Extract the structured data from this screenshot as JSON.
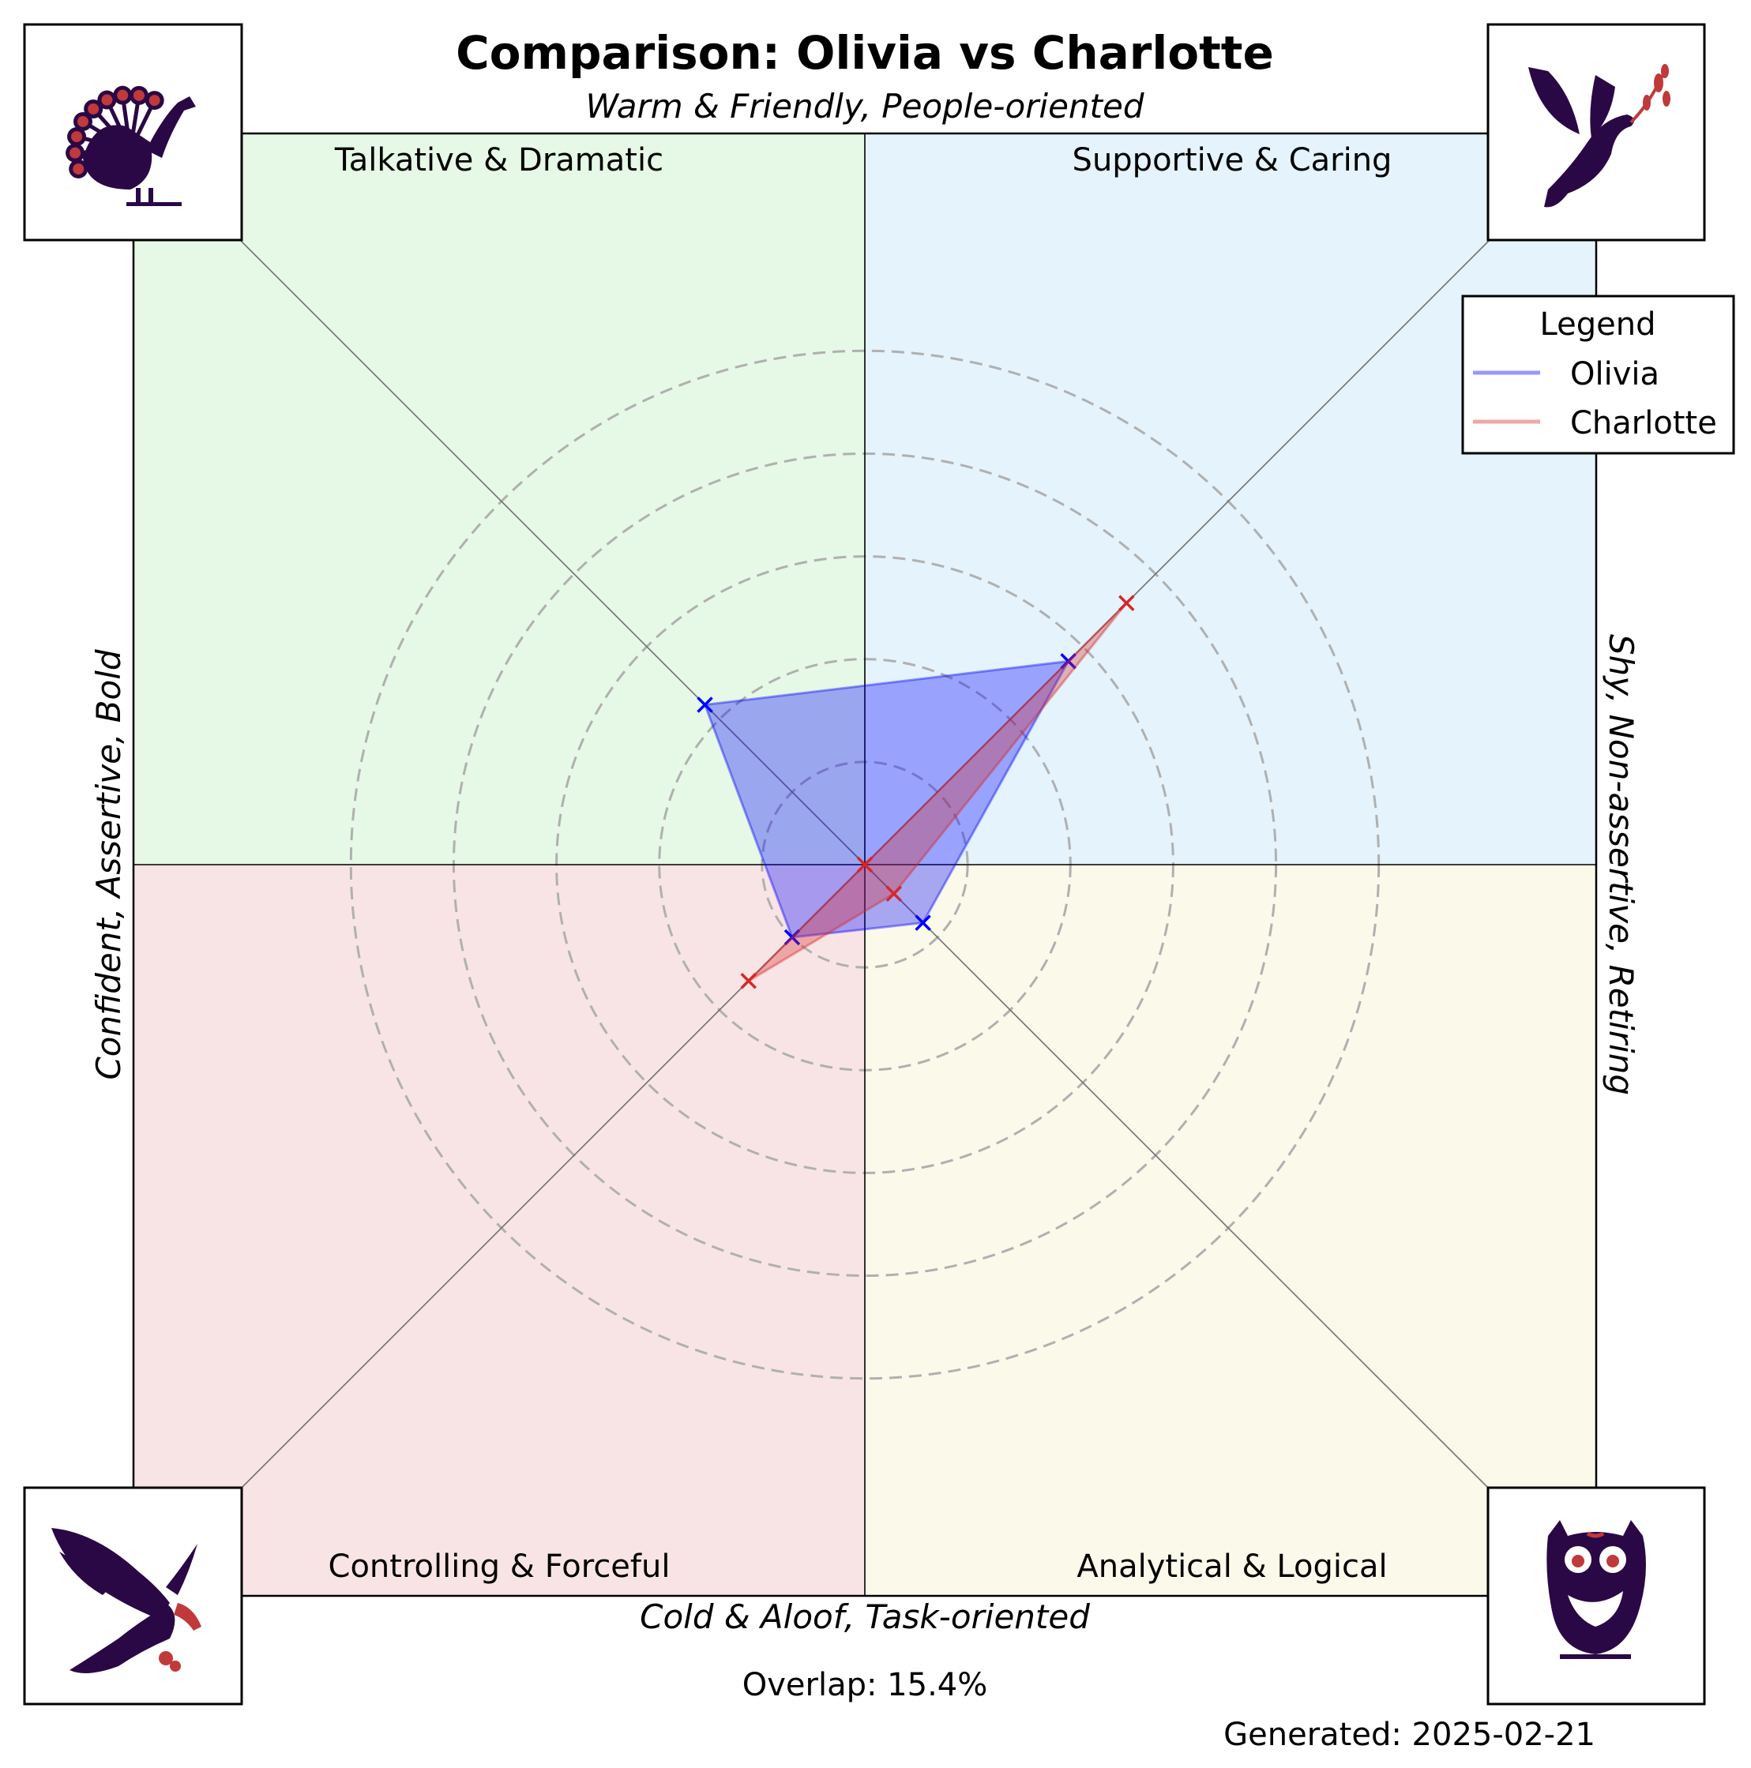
{
  "chart_data": {
    "type": "radar",
    "title": "Comparison: Olivia vs Charlotte",
    "axis_labels": {
      "top": "Warm & Friendly, People-oriented",
      "bottom": "Cold & Aloof, Task-oriented",
      "left": "Confident, Assertive, Bold",
      "right": "Shy, Non-assertive, Retiring"
    },
    "quadrants": [
      {
        "label": "Talkative & Dramatic",
        "position": "top-left",
        "color": "#e6f8e6",
        "icon": "peacock-icon"
      },
      {
        "label": "Supportive & Caring",
        "position": "top-right",
        "color": "#e4f3fc",
        "icon": "dove-icon"
      },
      {
        "label": "Controlling & Forceful",
        "position": "bottom-left",
        "color": "#f9e4e5",
        "icon": "eagle-icon"
      },
      {
        "label": "Analytical & Logical",
        "position": "bottom-right",
        "color": "#faf9ea",
        "icon": "owl-icon"
      }
    ],
    "spokes": [
      "Supportive & Caring",
      "Talkative & Dramatic",
      "Controlling & Forceful",
      "Analytical & Logical"
    ],
    "rlim": [
      0,
      5
    ],
    "rings": [
      1,
      2,
      3,
      4,
      5
    ],
    "series": [
      {
        "name": "Olivia",
        "color": "#0000ff",
        "values": [
          2.8,
          2.2,
          1.0,
          0.8
        ]
      },
      {
        "name": "Charlotte",
        "color": "#d62728",
        "values": [
          3.6,
          0.0,
          1.6,
          0.4
        ]
      }
    ],
    "legend": {
      "title": "Legend",
      "position": "top-right"
    },
    "grid": true
  },
  "footer": {
    "overlap": "Overlap: 15.4%",
    "generated": "Generated: 2025-02-21"
  },
  "colors": {
    "icon_dark": "#2a0845",
    "icon_accent": "#c0393b"
  }
}
